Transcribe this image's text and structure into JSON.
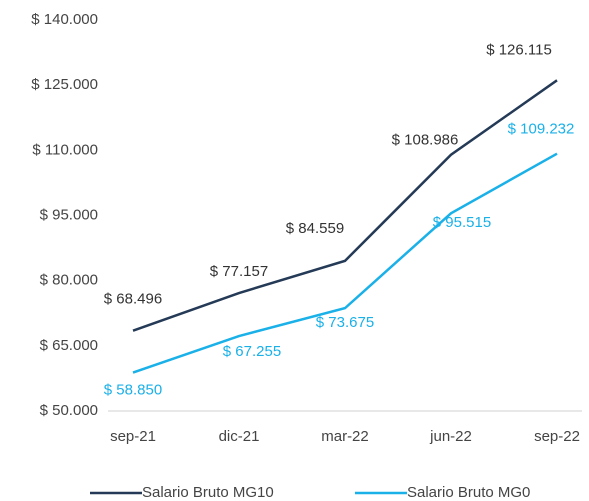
{
  "chart_data": {
    "type": "line",
    "categories": [
      "sep-21",
      "dic-21",
      "mar-22",
      "jun-22",
      "sep-22"
    ],
    "series": [
      {
        "name": "Salario Bruto MG10",
        "color": "#243a56",
        "values": [
          68496,
          77157,
          84559,
          108986,
          126115
        ],
        "value_labels": [
          "$ 68.496",
          "$ 77.157",
          "$ 84.559",
          "$ 108.986",
          "$ 126.115"
        ]
      },
      {
        "name": "Salario Bruto MG0",
        "color": "#1ab0e8",
        "values": [
          58850,
          67255,
          73675,
          95515,
          109232
        ],
        "value_labels": [
          "$ 58.850",
          "$ 67.255",
          "$ 73.675",
          "$ 95.515",
          "$ 109.232"
        ]
      }
    ],
    "ylim": [
      50000,
      140000
    ],
    "yticks": [
      {
        "value": 50000,
        "label": "$ 50.000"
      },
      {
        "value": 65000,
        "label": "$ 65.000"
      },
      {
        "value": 80000,
        "label": "$ 80.000"
      },
      {
        "value": 95000,
        "label": "$ 95.000"
      },
      {
        "value": 110000,
        "label": "$ 110.000"
      },
      {
        "value": 125000,
        "label": "$ 125.000"
      },
      {
        "value": 140000,
        "label": "$ 140.000"
      }
    ],
    "grid": false,
    "legend": "bottom"
  }
}
